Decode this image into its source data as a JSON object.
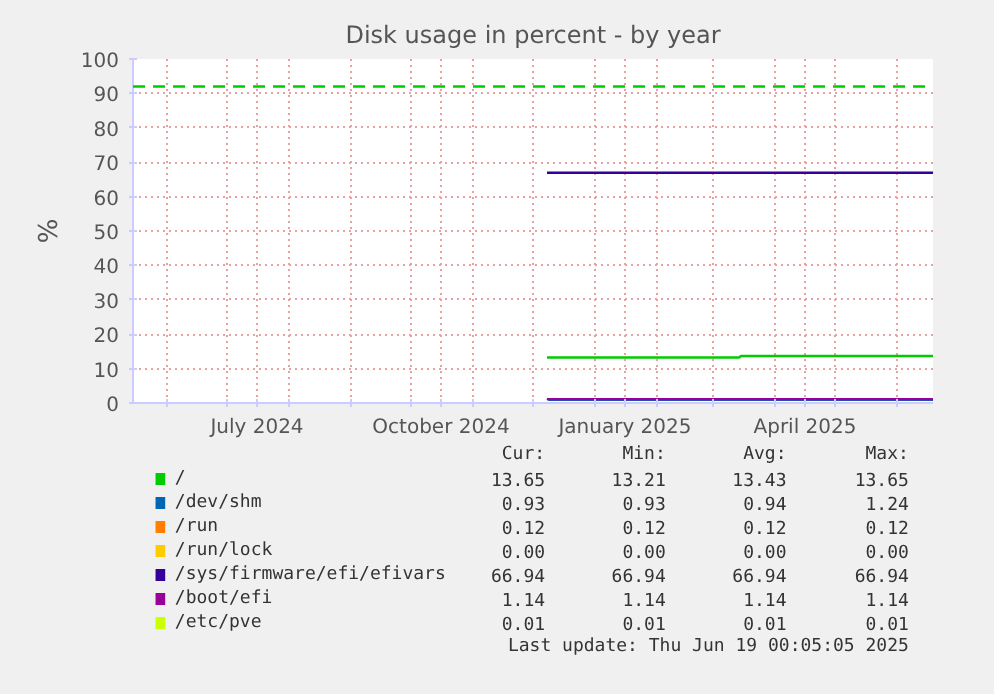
{
  "chart_data": {
    "type": "line",
    "title": "Disk usage in percent - by year",
    "ylabel": "%",
    "xlim": [
      "2024-05-15",
      "2025-06-19"
    ],
    "ylim": [
      0,
      100
    ],
    "xticks": [
      {
        "value": "2024-06-01",
        "label": null
      },
      {
        "value": "2024-07-01",
        "label": null
      },
      {
        "value": "2024-07-16",
        "label": "July 2024"
      },
      {
        "value": "2024-08-01",
        "label": null
      },
      {
        "value": "2024-09-01",
        "label": null
      },
      {
        "value": "2024-10-01",
        "label": null
      },
      {
        "value": "2024-10-16",
        "label": "October 2024"
      },
      {
        "value": "2024-11-01",
        "label": null
      },
      {
        "value": "2024-12-01",
        "label": null
      },
      {
        "value": "2025-01-01",
        "label": null
      },
      {
        "value": "2025-01-16",
        "label": "January 2025"
      },
      {
        "value": "2025-02-01",
        "label": null
      },
      {
        "value": "2025-03-01",
        "label": null
      },
      {
        "value": "2025-04-01",
        "label": null
      },
      {
        "value": "2025-04-16",
        "label": "April 2025"
      },
      {
        "value": "2025-05-01",
        "label": null
      },
      {
        "value": "2025-06-01",
        "label": null
      }
    ],
    "yticks": [
      0,
      10,
      20,
      30,
      40,
      50,
      60,
      70,
      80,
      90,
      100
    ],
    "grid": true,
    "legend": "bottom",
    "ref_lines": [
      {
        "axis": "y",
        "value": 92,
        "color": "#00cc00",
        "line_style": "dashed"
      }
    ],
    "series": [
      {
        "name": "/",
        "color": "#00cc00",
        "x": [
          "2024-12-08",
          "2025-03-14",
          "2025-03-15",
          "2025-06-19"
        ],
        "values": [
          13.21,
          13.21,
          13.65,
          13.65
        ]
      },
      {
        "name": "/dev/shm",
        "color": "#0066b3",
        "x": [
          "2024-12-08",
          "2024-12-09",
          "2025-06-19"
        ],
        "values": [
          1.24,
          0.93,
          0.93
        ]
      },
      {
        "name": "/run",
        "color": "#ff8000"
      },
      {
        "name": "/run/lock",
        "color": "#ffcc00"
      },
      {
        "name": "/sys/firmware/efi/efivars",
        "color": "#330099",
        "x": [
          "2024-12-08",
          "2025-06-19"
        ],
        "values": [
          66.94,
          66.94
        ]
      },
      {
        "name": "/boot/efi",
        "color": "#990099",
        "x": [
          "2024-12-08",
          "2025-06-19"
        ],
        "values": [
          1.14,
          1.14
        ]
      },
      {
        "name": "/etc/pve",
        "color": "#ccff00"
      }
    ],
    "annotations": [
      "Cur:",
      "Min:",
      "Avg:",
      "Max:",
      "13.65",
      "13.21",
      "13.43",
      "13.65",
      "0.93",
      "0.93",
      "0.94",
      "1.24",
      "0.12",
      "0.12",
      "0.12",
      "0.12",
      "0.00",
      "0.00",
      "0.00",
      "0.00",
      "66.94",
      "66.94",
      "66.94",
      "66.94",
      "1.14",
      "1.14",
      "1.14",
      "1.14",
      "0.01",
      "0.01",
      "0.01",
      "0.01",
      "Last update: Thu Jun 19 00:05:05 2025"
    ]
  }
}
